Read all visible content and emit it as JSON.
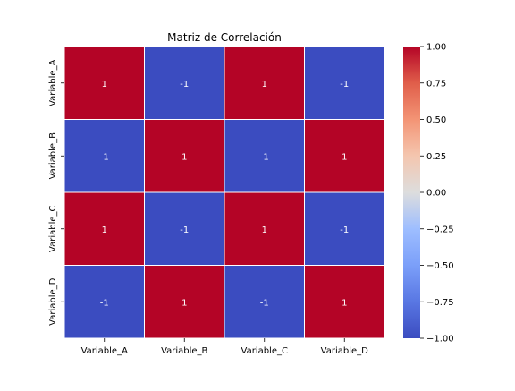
{
  "chart_data": {
    "type": "heatmap",
    "title": "Matriz de Correlación",
    "rows": [
      "Variable_A",
      "Variable_B",
      "Variable_C",
      "Variable_D"
    ],
    "columns": [
      "Variable_A",
      "Variable_B",
      "Variable_C",
      "Variable_D"
    ],
    "values": [
      [
        1,
        -1,
        1,
        -1
      ],
      [
        -1,
        1,
        -1,
        1
      ],
      [
        1,
        -1,
        1,
        -1
      ],
      [
        -1,
        1,
        -1,
        1
      ]
    ],
    "cell_labels": [
      [
        "1",
        "-1",
        "1",
        "-1"
      ],
      [
        "-1",
        "1",
        "-1",
        "1"
      ],
      [
        "1",
        "-1",
        "1",
        "-1"
      ],
      [
        "-1",
        "1",
        "-1",
        "1"
      ]
    ],
    "colormap": "coolwarm",
    "vmin": -1,
    "vmax": 1,
    "colorbar_ticks": [
      "1.00",
      "0.75",
      "0.50",
      "0.25",
      "0.00",
      "−0.25",
      "−0.50",
      "−0.75",
      "−1.00"
    ],
    "colors": {
      "low": "#3b4cc0",
      "mid": "#dddddd",
      "high": "#b40426"
    }
  }
}
